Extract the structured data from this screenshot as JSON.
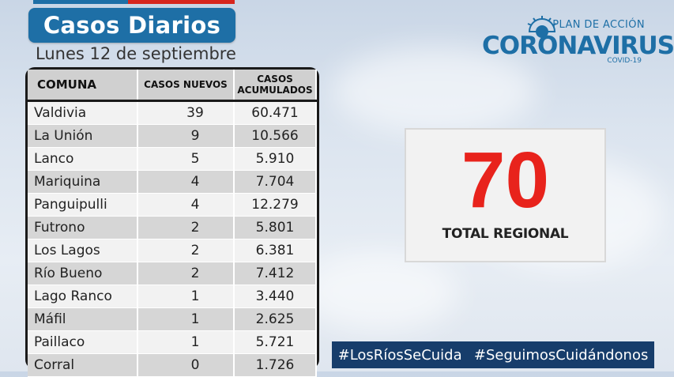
{
  "header": {
    "title": "Casos Diarios",
    "date": "Lunes 12 de septiembre"
  },
  "brand": {
    "plan": "PLAN DE ACCIÓN",
    "name": "CORONAVIRUS",
    "sub": "COVID-19",
    "color": "#1e6fa6"
  },
  "table": {
    "headers": {
      "comuna": "COMUNA",
      "nuevos": "CASOS NUEVOS",
      "acumulados_1": "CASOS",
      "acumulados_2": "ACUMULADOS"
    },
    "rows": [
      {
        "comuna": "Valdivia",
        "nuevos": "39",
        "acumulados": "60.471"
      },
      {
        "comuna": "La Unión",
        "nuevos": "9",
        "acumulados": "10.566"
      },
      {
        "comuna": "Lanco",
        "nuevos": "5",
        "acumulados": "5.910"
      },
      {
        "comuna": "Mariquina",
        "nuevos": "4",
        "acumulados": "7.704"
      },
      {
        "comuna": "Panguipulli",
        "nuevos": "4",
        "acumulados": "12.279"
      },
      {
        "comuna": "Futrono",
        "nuevos": "2",
        "acumulados": "5.801"
      },
      {
        "comuna": "Los Lagos",
        "nuevos": "2",
        "acumulados": "6.381"
      },
      {
        "comuna": "Río Bueno",
        "nuevos": "2",
        "acumulados": "7.412"
      },
      {
        "comuna": "Lago Ranco",
        "nuevos": "1",
        "acumulados": "3.440"
      },
      {
        "comuna": "Máfil",
        "nuevos": "1",
        "acumulados": "2.625"
      },
      {
        "comuna": "Paillaco",
        "nuevos": "1",
        "acumulados": "5.721"
      },
      {
        "comuna": "Corral",
        "nuevos": "0",
        "acumulados": "1.726"
      }
    ]
  },
  "total": {
    "value": "70",
    "label": "TOTAL REGIONAL",
    "color": "#e8231c"
  },
  "hashtags": [
    "#LosRíosSeCuida",
    "#SeguimosCuidándonos"
  ]
}
